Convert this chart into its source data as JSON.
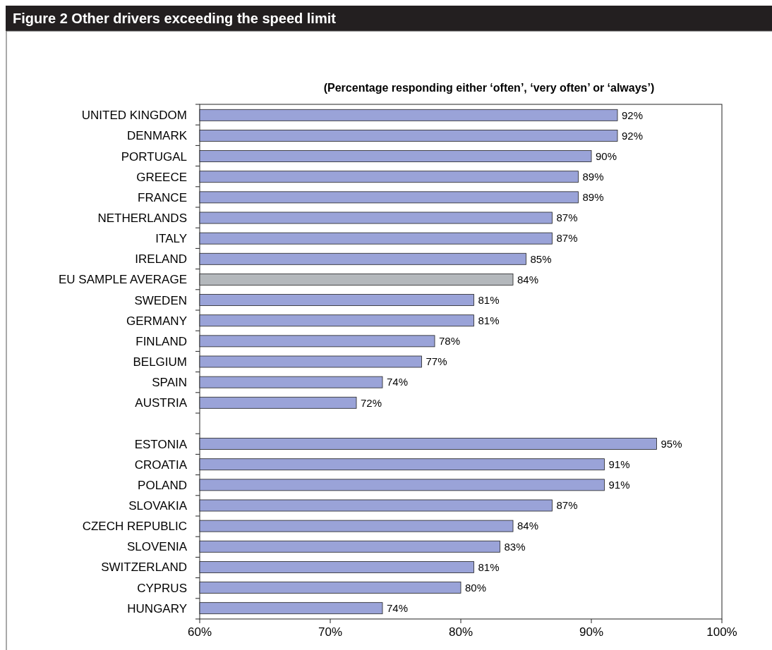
{
  "chart_data": {
    "type": "bar",
    "orientation": "horizontal",
    "title": "Figure 2 Other drivers exceeding the speed limit",
    "subtitle": "(Percentage responding either ‘often’, ‘very often’ or ‘always’)",
    "categories": [
      "UNITED KINGDOM",
      "DENMARK",
      "PORTUGAL",
      "GREECE",
      "FRANCE",
      "NETHERLANDS",
      "ITALY",
      "IRELAND",
      "EU SAMPLE AVERAGE",
      "SWEDEN",
      "GERMANY",
      "FINLAND",
      "BELGIUM",
      "SPAIN",
      "AUSTRIA",
      null,
      "ESTONIA",
      "CROATIA",
      "POLAND",
      "SLOVAKIA",
      "CZECH REPUBLIC",
      "SLOVENIA",
      "SWITZERLAND",
      "CYPRUS",
      "HUNGARY"
    ],
    "values": [
      92,
      92,
      90,
      89,
      89,
      87,
      87,
      85,
      84,
      81,
      81,
      78,
      77,
      74,
      72,
      null,
      95,
      91,
      91,
      87,
      84,
      83,
      81,
      80,
      74
    ],
    "value_labels": [
      "92%",
      "92%",
      "90%",
      "89%",
      "89%",
      "87%",
      "87%",
      "85%",
      "84%",
      "81%",
      "81%",
      "78%",
      "77%",
      "74%",
      "72%",
      null,
      "95%",
      "91%",
      "91%",
      "87%",
      "84%",
      "83%",
      "81%",
      "80%",
      "74%"
    ],
    "colors": [
      "#9aa3d8",
      "#9aa3d8",
      "#9aa3d8",
      "#9aa3d8",
      "#9aa3d8",
      "#9aa3d8",
      "#9aa3d8",
      "#9aa3d8",
      "#b4b8bc",
      "#9aa3d8",
      "#9aa3d8",
      "#9aa3d8",
      "#9aa3d8",
      "#9aa3d8",
      "#9aa3d8",
      null,
      "#9aa3d8",
      "#9aa3d8",
      "#9aa3d8",
      "#9aa3d8",
      "#9aa3d8",
      "#9aa3d8",
      "#9aa3d8",
      "#9aa3d8",
      "#9aa3d8"
    ],
    "xlim": [
      60,
      100
    ],
    "xticks": [
      {
        "value": 60,
        "label": "60%"
      },
      {
        "value": 70,
        "label": "70%"
      },
      {
        "value": 80,
        "label": "80%"
      },
      {
        "value": 90,
        "label": "90%"
      },
      {
        "value": 100,
        "label": "100%"
      }
    ],
    "grid": false
  }
}
